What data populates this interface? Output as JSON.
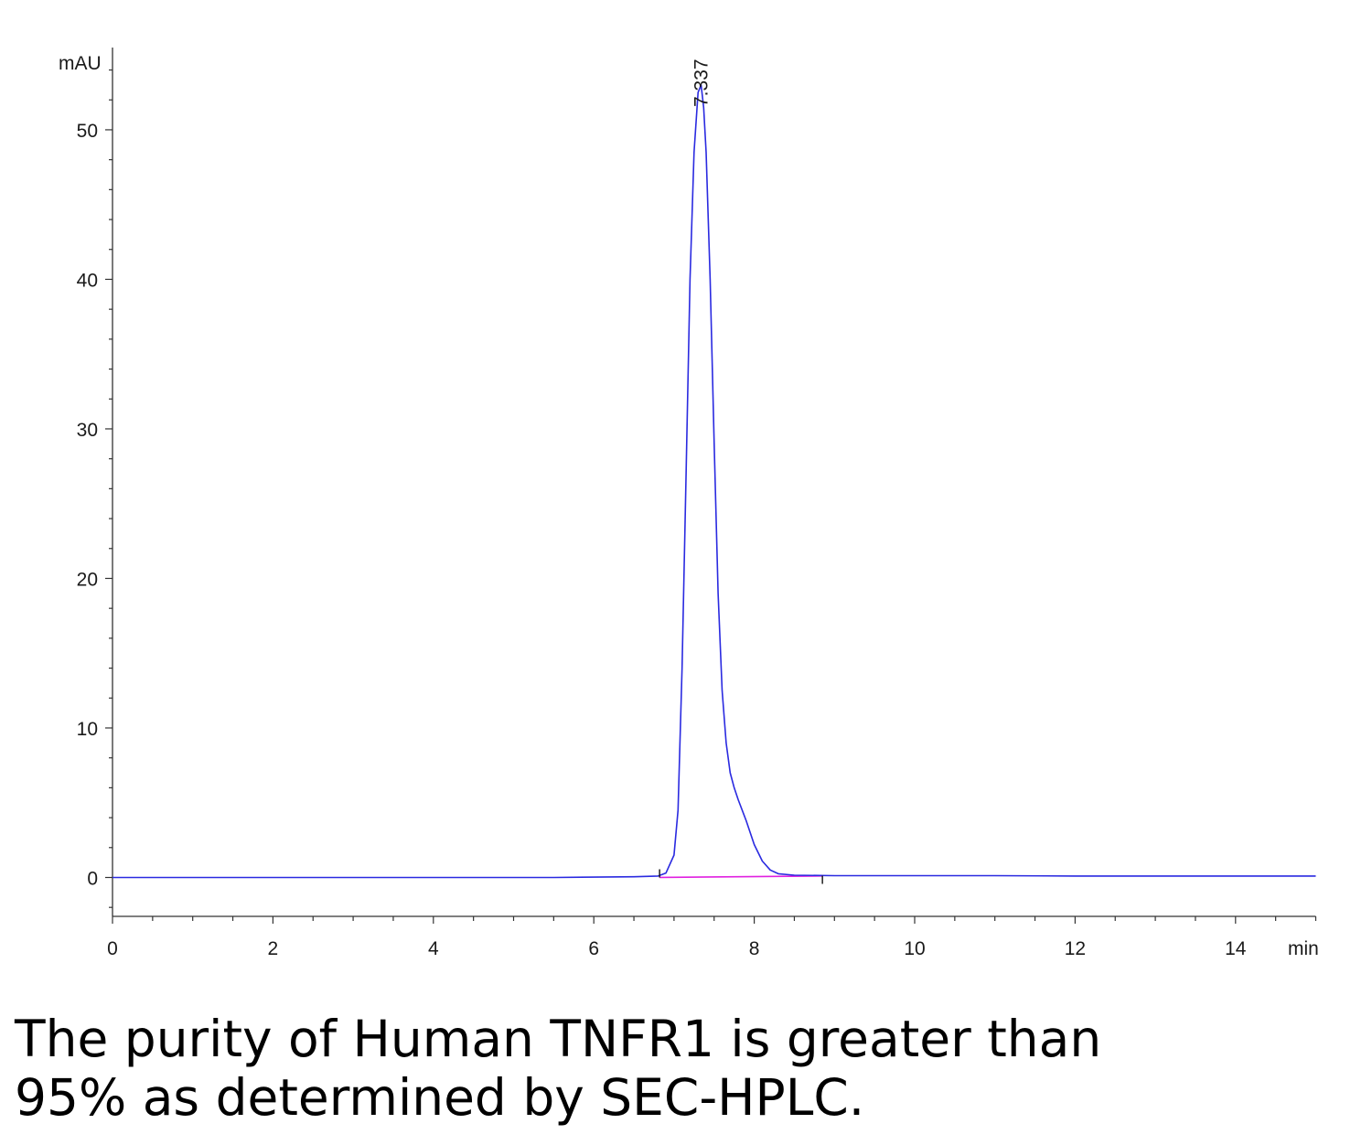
{
  "caption": {
    "line1": "The purity of Human TNFR1 is greater than",
    "line2": "95% as determined by SEC-HPLC."
  },
  "chart_data": {
    "type": "line",
    "title": "",
    "xlabel": "min",
    "ylabel": "mAU",
    "xlim": [
      0,
      15
    ],
    "ylim": [
      -2.6,
      55.5
    ],
    "x_ticks": [
      0,
      2,
      4,
      6,
      8,
      10,
      12,
      14
    ],
    "x_minor_step": 0.5,
    "y_ticks": [
      0,
      10,
      20,
      30,
      40,
      50
    ],
    "y_minor_step": 2,
    "grid": false,
    "legend": "none",
    "peak_labels": [
      {
        "x": 7.337,
        "text": "7.337"
      }
    ],
    "integration_baseline": {
      "x": [
        6.82,
        8.85
      ],
      "y": [
        0,
        0.1
      ],
      "color": "#e020e0"
    },
    "event_marks": [
      6.82,
      8.85
    ],
    "series": [
      {
        "color": "#2a2ae0",
        "x": [
          0,
          4.2,
          5.5,
          6.5,
          6.8,
          6.9,
          7.0,
          7.05,
          7.1,
          7.15,
          7.2,
          7.25,
          7.3,
          7.337,
          7.37,
          7.4,
          7.45,
          7.5,
          7.55,
          7.6,
          7.65,
          7.7,
          7.75,
          7.8,
          7.9,
          8.0,
          8.1,
          8.2,
          8.3,
          8.5,
          9.0,
          10.0,
          11.0,
          12.0,
          13.0,
          14.0,
          15.0
        ],
        "y": [
          0,
          0,
          0,
          0.05,
          0.1,
          0.3,
          1.5,
          4.5,
          14,
          27,
          40,
          48.5,
          52.5,
          53,
          51.5,
          48.5,
          40,
          29,
          19,
          12.5,
          9,
          7,
          6,
          5.2,
          3.8,
          2.2,
          1.1,
          0.5,
          0.25,
          0.15,
          0.12,
          0.12,
          0.12,
          0.1,
          0.1,
          0.1,
          0.1
        ]
      }
    ]
  }
}
